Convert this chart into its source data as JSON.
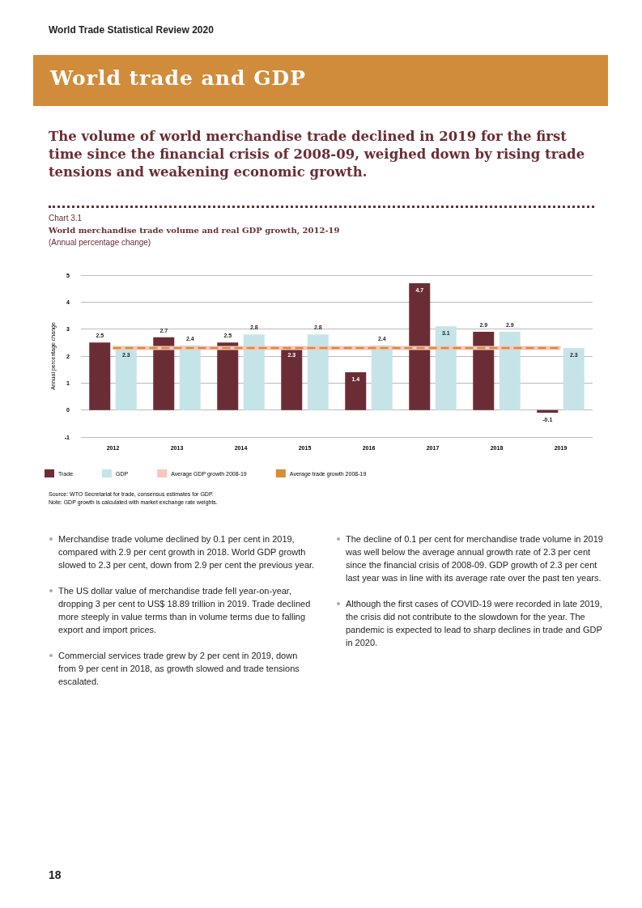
{
  "chart_data": {
    "type": "bar",
    "title": "World merchandise trade volume and real GDP growth, 2012-19",
    "subtitle": "(Annual percentage change)",
    "ylabel": "Annual percentage change",
    "categories": [
      "2012",
      "2013",
      "2014",
      "2015",
      "2016",
      "2017",
      "2018",
      "2019"
    ],
    "series": [
      {
        "name": "Trade",
        "color": "#6b2d35",
        "values": [
          2.5,
          2.7,
          2.5,
          2.3,
          1.4,
          4.7,
          2.9,
          -0.1
        ],
        "value_labels": [
          "2.5",
          "2.7",
          "2.5",
          "2.3",
          "1.4",
          "4.7",
          "2.9",
          "-0.1"
        ]
      },
      {
        "name": "GDP",
        "color": "#c5e4e8",
        "values": [
          2.3,
          2.4,
          2.8,
          2.8,
          2.4,
          3.1,
          2.9,
          2.3
        ],
        "value_labels": [
          "2.3",
          "2.4",
          "2.8",
          "2.8",
          "2.4",
          "3.1",
          "2.9",
          "2.3"
        ]
      },
      {
        "name": "Average GDP growth 2008-19",
        "type": "line",
        "line_style": "solid",
        "color": "#f7c6bd",
        "values": [
          2.3,
          2.3,
          2.3,
          2.3,
          2.3,
          2.3,
          2.3,
          2.3
        ]
      },
      {
        "name": "Average trade growth 2008-19",
        "type": "line",
        "line_style": "dashed",
        "color": "#d98a3a",
        "values": [
          2.3,
          2.3,
          2.3,
          2.3,
          2.3,
          2.3,
          2.3,
          2.3
        ]
      }
    ],
    "ylim": [
      -1,
      5
    ],
    "yticks": [
      -1,
      0,
      1,
      2,
      3,
      4,
      5
    ],
    "grid": "y",
    "legend": "bottom left",
    "annotations": [
      "World Trade Statistical Review 2020",
      "World trade and GDP",
      "The volume of world merchandise trade declined in 2019 for the first time since the financial crisis of 2008-09, weighed down by rising trade tensions and weakening economic growth.",
      "Chart 3.1",
      "Source: WTO Secretariat for trade, consensus estimates for GDP.",
      "Note: GDP growth is calculated with market exchange rate weights.",
      "Merchandise trade volume declined by 0.1 per cent in 2019, compared with 2.9 per cent growth in 2018. World GDP growth slowed to 2.3 per cent, down from 2.9 per cent the previous year.",
      "The US dollar value of merchandise trade fell year-on-year, dropping 3 per cent to US$ 18.89 trillion in 2019. Trade declined more steeply in value terms than in volume terms due to falling export and import prices.",
      "Commercial services trade grew by 2 per cent in 2019, down from 9 per cent in 2018, as growth slowed and trade tensions escalated.",
      "The decline of 0.1 per cent for merchandise trade volume in 2019 was well below the average annual growth rate of 2.3 per cent since the financial crisis of 2008-09. GDP growth of 2.3 per cent last year was in line with its average rate over the past ten years.",
      "Although the first cases of COVID-19 were recorded in late 2019, the crisis did not contribute to the slowdown for the year. The pandemic is expected to lead to sharp declines in trade and GDP in 2020.",
      "18"
    ]
  }
}
